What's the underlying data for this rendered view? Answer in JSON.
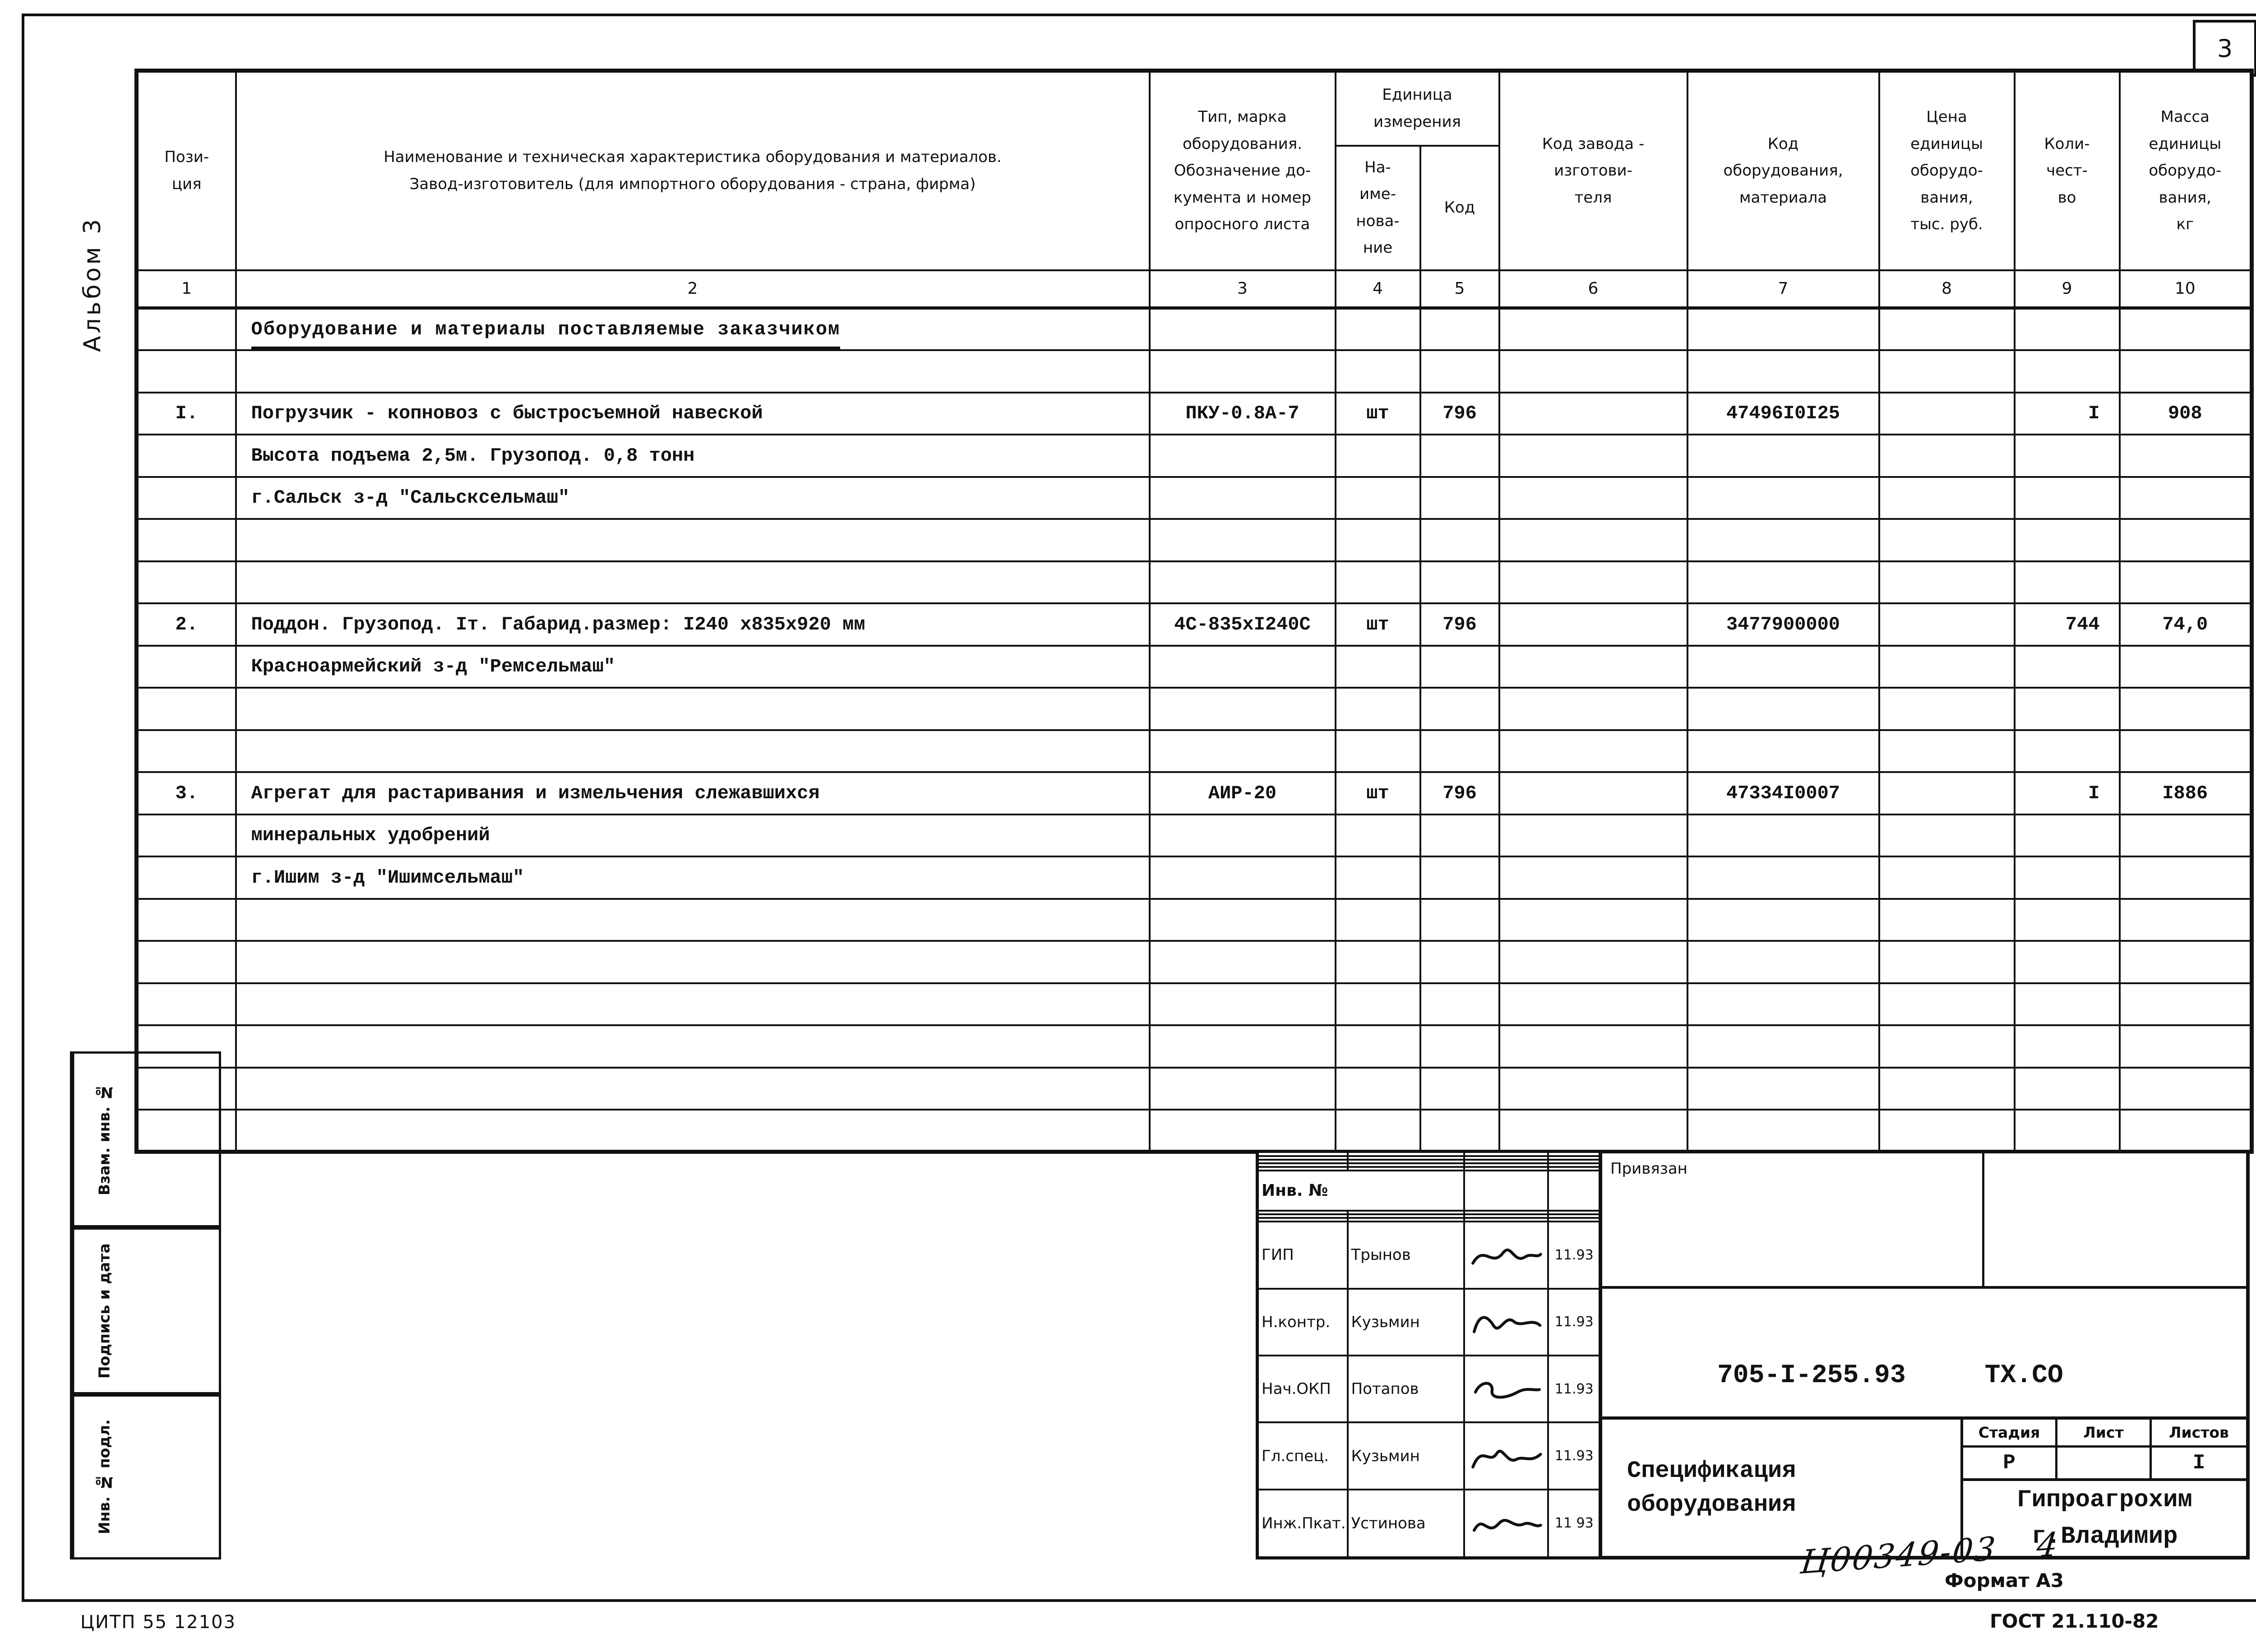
{
  "page": {
    "sheet_number": "3"
  },
  "margin": {
    "album_label": "Альбом 3",
    "stamp_boxes": [
      "Взам. инв. №",
      "Подпись и дата",
      "Инв. № подл."
    ]
  },
  "table": {
    "headers": {
      "pos": "Пози-\nция",
      "name": "Наименование и техническая характеристика  оборудования и материалов.\nЗавод-изготовитель  (для импортного оборудования -  страна, фирма)",
      "type": "Тип,  марка\nоборудования.\nОбозначение  до-\nкумента  и  номер\nопросного листа",
      "unit_group": "Единица\nизмерения",
      "unit_name": "На-\nиме-\nнова-\nние",
      "unit_code": "Код",
      "factory_code": "Код  завода -\nизготови-\nтеля",
      "equip_code": "Код\nоборудования,\nматериала",
      "price": "Цена\nединицы\nоборудо-\nвания,\nтыс. руб.",
      "qty": "Коли-\nчест-\nво",
      "mass": "Масса\nединицы\nоборудо-\nвания,\nкг"
    },
    "column_numbers": [
      "1",
      "2",
      "3",
      "4",
      "5",
      "6",
      "7",
      "8",
      "9",
      "10"
    ],
    "rows": [
      {
        "underline": true,
        "cells": [
          "",
          "Оборудование и материалы поставляемые заказчиком",
          "",
          "",
          "",
          "",
          "",
          "",
          "",
          ""
        ]
      },
      {
        "cells": [
          "",
          "",
          "",
          "",
          "",
          "",
          "",
          "",
          "",
          ""
        ]
      },
      {
        "cells": [
          "I.",
          "Погрузчик - копновоз с быстросъемной навеской",
          "ПКУ-0.8А-7",
          "шт",
          "796",
          "",
          "47496I0I25",
          "",
          "I",
          "908"
        ]
      },
      {
        "cells": [
          "",
          "Высота подъема 2,5м. Грузопод.  0,8 тонн",
          "",
          "",
          "",
          "",
          "",
          "",
          "",
          ""
        ]
      },
      {
        "cells": [
          "",
          "г.Сальск  з-д  \"Сальсксельмаш\"",
          "",
          "",
          "",
          "",
          "",
          "",
          "",
          ""
        ]
      },
      {
        "cells": [
          "",
          "",
          "",
          "",
          "",
          "",
          "",
          "",
          "",
          ""
        ]
      },
      {
        "cells": [
          "",
          "",
          "",
          "",
          "",
          "",
          "",
          "",
          "",
          ""
        ]
      },
      {
        "cells": [
          "2.",
          "Поддон. Грузопод. Iт. Габарид.размер: I240 х835х920 мм",
          "4С-835хI240С",
          "шт",
          "796",
          "",
          "3477900000",
          "",
          "744",
          "74,0"
        ]
      },
      {
        "cells": [
          "",
          "Красноармейский з-д \"Ремсельмаш\"",
          "",
          "",
          "",
          "",
          "",
          "",
          "",
          ""
        ]
      },
      {
        "cells": [
          "",
          "",
          "",
          "",
          "",
          "",
          "",
          "",
          "",
          ""
        ]
      },
      {
        "cells": [
          "",
          "",
          "",
          "",
          "",
          "",
          "",
          "",
          "",
          ""
        ]
      },
      {
        "cells": [
          "3.",
          "Агрегат для растаривания и измельчения слежавшихся",
          "АИР-20",
          "шт",
          "796",
          "",
          "47334I0007",
          "",
          "I",
          "I886"
        ]
      },
      {
        "cells": [
          "",
          "минеральных удобрений",
          "",
          "",
          "",
          "",
          "",
          "",
          "",
          ""
        ]
      },
      {
        "cells": [
          "",
          "г.Ишим з-д \"Ишимсельмаш\"",
          "",
          "",
          "",
          "",
          "",
          "",
          "",
          ""
        ]
      },
      {
        "cells": [
          "",
          "",
          "",
          "",
          "",
          "",
          "",
          "",
          "",
          ""
        ]
      },
      {
        "cells": [
          "",
          "",
          "",
          "",
          "",
          "",
          "",
          "",
          "",
          ""
        ]
      },
      {
        "cells": [
          "",
          "",
          "",
          "",
          "",
          "",
          "",
          "",
          "",
          ""
        ]
      },
      {
        "cells": [
          "",
          "",
          "",
          "",
          "",
          "",
          "",
          "",
          "",
          ""
        ]
      },
      {
        "cells": [
          "",
          "",
          "",
          "",
          "",
          "",
          "",
          "",
          "",
          ""
        ]
      },
      {
        "cells": [
          "",
          "",
          "",
          "",
          "",
          "",
          "",
          "",
          "",
          ""
        ]
      }
    ]
  },
  "title_block": {
    "privyazan_label": "Привязан",
    "inv_label": "Инв. №",
    "doc_number": "705-I-255.93",
    "doc_code": "ТХ.СО",
    "doc_title": "Спецификация\nоборудования",
    "stage_label": "Стадия",
    "sheet_label": "Лист",
    "sheets_label": "Листов",
    "stage_value": "Р",
    "sheet_value": "",
    "sheets_value": "I",
    "organization": "Гипроагрохим\nг.Владимир",
    "signatures": [
      {
        "role": "ГИП",
        "name": "Трынов",
        "date": "11.93"
      },
      {
        "role": "Н.контр.",
        "name": "Кузьмин",
        "date": "11.93"
      },
      {
        "role": "Нач.ОКП",
        "name": "Потапов",
        "date": "11.93"
      },
      {
        "role": "Гл.спец.",
        "name": "Кузьмин",
        "date": "11.93"
      },
      {
        "role": "Инж.Пкат.",
        "name": "Устинова",
        "date": "11 93"
      }
    ]
  },
  "footer": {
    "printer_code": "ЦИТП  55 12103",
    "handwritten_code": "Ц00349-03",
    "handwritten_sheet": "4",
    "format_label": "Формат А3",
    "gost_label": "ГОСТ 21.110-82"
  }
}
